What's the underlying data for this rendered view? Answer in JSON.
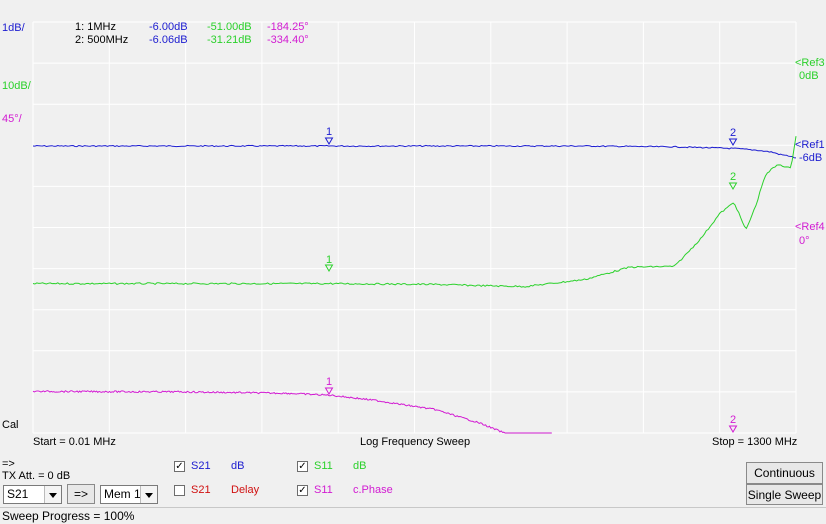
{
  "plot": {
    "scale_labels": {
      "s21_db": "1dB/",
      "s11_db": "10dB/",
      "phase": "45°/"
    },
    "ref_labels": [
      {
        "name": "<Ref3",
        "value": "0dB",
        "color": "#2bd12b"
      },
      {
        "name": "<Ref1",
        "value": "-6dB",
        "color": "#1c1cd0"
      },
      {
        "name": "<Ref4",
        "value": "0°",
        "color": "#d21bd2"
      }
    ],
    "markers": [
      {
        "label": "1: 1MHz",
        "s21_db": "-6.00dB",
        "s11_db": "-51.00dB",
        "phase": "-184.25°"
      },
      {
        "label": "2: 500MHz",
        "s21_db": "-6.06dB",
        "s11_db": "-31.21dB",
        "phase": "-334.40°"
      }
    ],
    "marker_numbers": [
      "1",
      "2"
    ],
    "cal_label": "Cal",
    "start_label": "Start = 0.01 MHz",
    "sweep_label": "Log Frequency Sweep",
    "stop_label": "Stop = 1300 MHz",
    "colors": {
      "grid": "#ffffff",
      "s21": "#1c1cd0",
      "s11_db": "#2bd12b",
      "phase": "#d21bd2"
    }
  },
  "chart_data": {
    "type": "line",
    "x_scale": "log",
    "xlim": [
      0.01,
      1300
    ],
    "xlabel": "Log Frequency Sweep",
    "series": [
      {
        "name": "S21 dB",
        "x": [
          0.01,
          0.1,
          1,
          10,
          50,
          100,
          200,
          400,
          500,
          700,
          900,
          1000,
          1200,
          1300
        ],
        "values": [
          -6.0,
          -6.0,
          -6.0,
          -6.0,
          -6.0,
          -6.01,
          -6.02,
          -6.05,
          -6.06,
          -6.1,
          -6.15,
          -6.2,
          -6.25,
          -6.3
        ]
      },
      {
        "name": "S11 dB",
        "x": [
          0.01,
          0.1,
          1,
          5,
          10,
          20,
          50,
          100,
          200,
          300,
          400,
          500,
          600,
          700,
          800,
          900,
          1000,
          1200,
          1300
        ],
        "values": [
          -51.0,
          -51.0,
          -51.0,
          -51.2,
          -51.5,
          -51.7,
          -50.0,
          -47.0,
          -46.8,
          -40.0,
          -34.0,
          -31.2,
          -38.0,
          -32.0,
          -25.0,
          -23.0,
          -22.0,
          -23.0,
          -15.0
        ]
      },
      {
        "name": "S11 c.Phase",
        "x": [
          0.01,
          0.1,
          0.5,
          1,
          2,
          5,
          10,
          20,
          30
        ],
        "values": [
          -180.0,
          -180.5,
          -182.0,
          -184.25,
          -190.0,
          -200.0,
          -215.0,
          -235.0,
          -255.0
        ]
      }
    ]
  },
  "controls": {
    "arrow_label": "=>",
    "tx_att_label": "TX Att.  = 0 dB",
    "port_select": "S21",
    "transfer_button": "=>",
    "memory_select": "Mem 1",
    "traces": [
      {
        "param": "S21",
        "unit": "dB",
        "checked": true,
        "color": "#1c1cd0"
      },
      {
        "param": "S21",
        "unit": "Delay",
        "checked": false,
        "color": "#d01010"
      },
      {
        "param": "S11",
        "unit": "dB",
        "checked": true,
        "color": "#2bd12b"
      },
      {
        "param": "S11",
        "unit": "c.Phase",
        "checked": true,
        "color": "#d21bd2"
      }
    ],
    "continuous_button": "Continuous",
    "single_sweep_button": "Single Sweep"
  },
  "status": {
    "sweep_progress": "Sweep Progress = 100%"
  }
}
